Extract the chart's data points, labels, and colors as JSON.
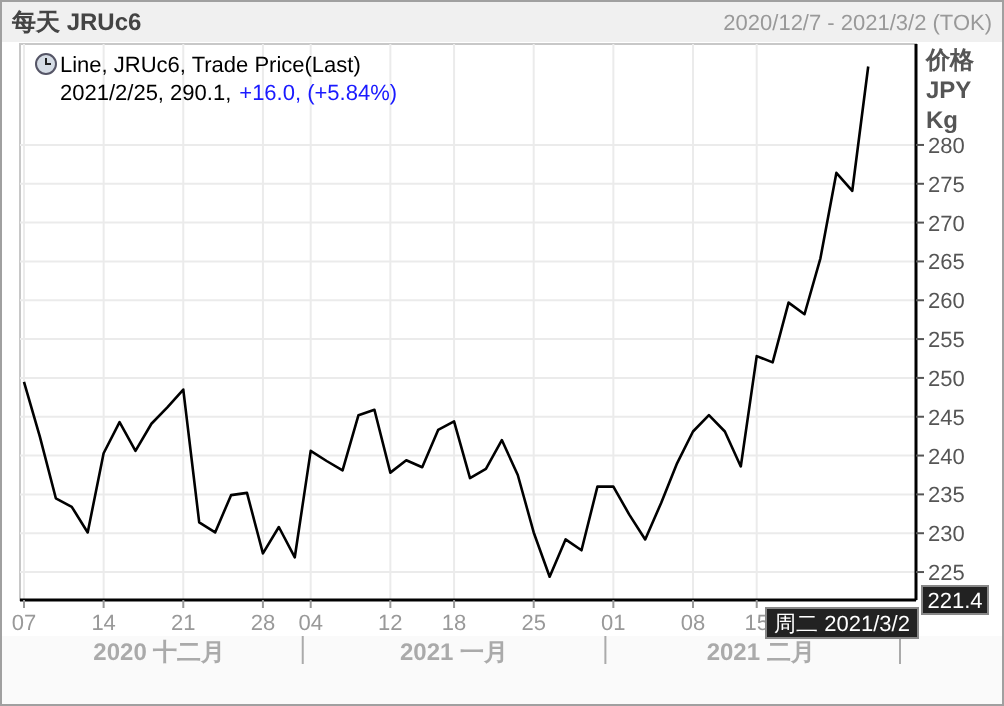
{
  "chart_data": {
    "type": "line",
    "title": "每天 JRUc6",
    "subtitle": "2020/12/7 - 2021/3/2 (TOK)",
    "ylabel": "价格 JPY Kg",
    "categories": [
      "07",
      null,
      null,
      null,
      null,
      "14",
      null,
      null,
      null,
      null,
      "21",
      null,
      null,
      null,
      null,
      "28",
      null,
      null,
      "04",
      null,
      null,
      null,
      null,
      "12",
      null,
      null,
      null,
      "18",
      null,
      null,
      null,
      null,
      "25",
      null,
      null,
      null,
      null,
      "01",
      null,
      null,
      null,
      null,
      "08",
      null,
      null,
      null,
      "15",
      null,
      null,
      null,
      null,
      null,
      null,
      null,
      null,
      null,
      null
    ],
    "series": [
      {
        "name": "Line, JRUc6, Trade Price(Last)",
        "color": "#000000",
        "values": [
          249.5,
          242.4,
          234.5,
          233.4,
          230.1,
          240.3,
          244.3,
          240.6,
          244.1,
          246.2,
          248.5,
          231.4,
          230.1,
          234.9,
          235.2,
          227.4,
          230.8,
          226.9,
          240.6,
          239.3,
          238.1,
          245.2,
          245.9,
          237.8,
          239.4,
          238.5,
          243.3,
          244.4,
          237.1,
          238.3,
          242,
          237.5,
          230.1,
          224.4,
          229.2,
          227.8,
          236,
          236,
          232.4,
          229.2,
          233.9,
          239,
          243.1,
          245.2,
          243.1,
          238.6,
          252.8,
          252,
          259.7,
          258.2,
          265.4,
          276.4,
          274.1,
          290.1,
          null,
          null,
          null
        ]
      }
    ],
    "ylim": [
      221.4,
      293
    ],
    "yticks": [
      {
        "value": 221.4,
        "label": "221.4"
      },
      225,
      230,
      235,
      240,
      245,
      250,
      255,
      260,
      265,
      270,
      275,
      280
    ],
    "grid": true,
    "legend": "top left",
    "marker": "none",
    "line_style": "solid",
    "annotations": [
      "2021/2/25, 290.1,",
      "+16.0, (+5.84%)",
      "2020 十二月",
      "2021 一月",
      "2021 二月",
      "周二 2021/3/2"
    ]
  }
}
